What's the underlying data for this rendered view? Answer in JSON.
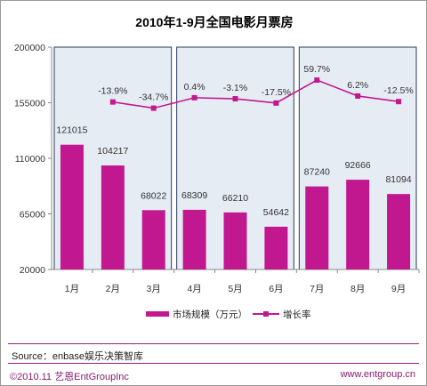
{
  "chart_data": {
    "type": "bar",
    "title": "2010年1-9月全国电影月票房",
    "categories": [
      "1月",
      "2月",
      "3月",
      "4月",
      "5月",
      "6月",
      "7月",
      "8月",
      "9月"
    ],
    "series": [
      {
        "name": "市场规模（万元）",
        "type": "bar",
        "values": [
          121015,
          104217,
          68022,
          68309,
          66210,
          54642,
          87240,
          92666,
          81094
        ]
      },
      {
        "name": "增长率",
        "type": "line",
        "values": [
          null,
          -13.9,
          -34.7,
          0.4,
          -3.1,
          -17.5,
          59.7,
          6.2,
          -12.5
        ],
        "labels": [
          "",
          "-13.9%",
          "-34.7%",
          "0.4%",
          "-3.1%",
          "-17.5%",
          "59.7%",
          "6.2%",
          "-12.5%"
        ]
      }
    ],
    "bar_labels": [
      "121015",
      "104217",
      "68022",
      "68309",
      "66210",
      "54642",
      "87240",
      "92666",
      "81094"
    ],
    "yticks": [
      "200000",
      "155000",
      "110000",
      "65000",
      "20000"
    ],
    "ylim": [
      20000,
      200000
    ],
    "colors": {
      "bar": "#c2188f",
      "line": "#c2188f",
      "panel": "#e6ecf4"
    }
  },
  "footer": {
    "source": "Source：enbase娱乐决策智库",
    "copyright": "©2010.11 艺恩EntGroupInc",
    "url": "www.entgroup.cn"
  }
}
